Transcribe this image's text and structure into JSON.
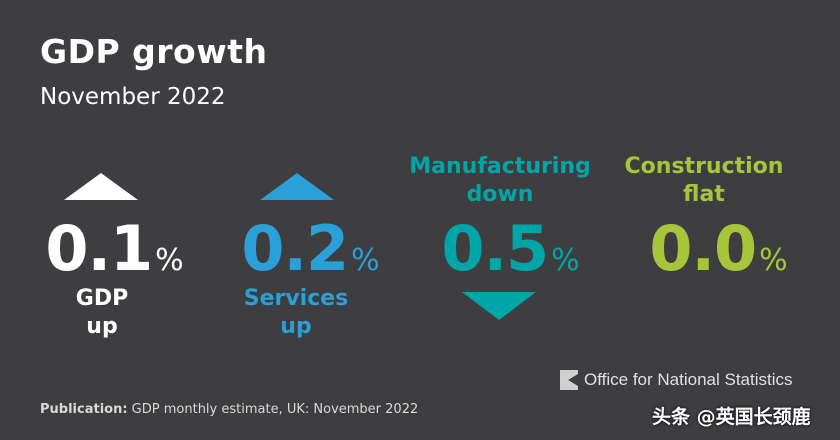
{
  "header": {
    "title": "GDP growth",
    "subtitle": "November 2022"
  },
  "indicators": [
    {
      "value": "0.1",
      "unit": "%",
      "label_line1": "GDP",
      "label_line2": "up",
      "direction": "up",
      "color": "#ffffff"
    },
    {
      "value": "0.2",
      "unit": "%",
      "label_line1": "Services",
      "label_line2": "up",
      "direction": "up",
      "color": "#2a9fd8"
    },
    {
      "value": "0.5",
      "unit": "%",
      "label_line1": "Manufacturing",
      "label_line2": "down",
      "direction": "down",
      "color": "#00a5a8"
    },
    {
      "value": "0.0",
      "unit": "%",
      "label_line1": "Construction",
      "label_line2": "flat",
      "direction": "flat",
      "color": "#a8c43a"
    }
  ],
  "footer": {
    "publication_label": "Publication:",
    "publication_text": " GDP monthly estimate, UK: November 2022"
  },
  "logo": {
    "text": "Office for National Statistics"
  },
  "watermark": {
    "text": "头条 @英国长颈鹿"
  }
}
